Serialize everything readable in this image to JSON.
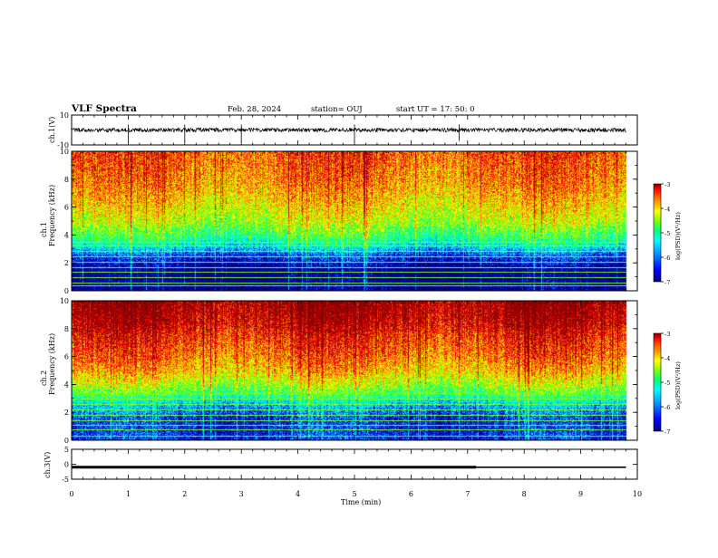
{
  "header": {
    "title": "VLF Spectra",
    "date": "Feb. 28, 2024",
    "station": "station= OUJ",
    "start": "start  UT =   17: 50: 0"
  },
  "colors": {
    "spectrum_scale": [
      "#00007f",
      "#0000ff",
      "#00a0ff",
      "#00ffff",
      "#00ff80",
      "#80ff00",
      "#ffff00",
      "#ff8000",
      "#ff0000",
      "#800000"
    ]
  },
  "chart_data": [
    {
      "id": "ch1-waveform",
      "type": "line",
      "ylabel": "ch.1(V)",
      "ylim": [
        -10,
        10
      ],
      "yticks": [
        "10",
        "-10"
      ],
      "xlim": [
        0,
        10
      ],
      "series": [
        {
          "x": [
            0,
            9.8
          ],
          "y": [
            0,
            0
          ]
        }
      ],
      "spikes_min": [
        1.0,
        2.0,
        3.0,
        5.0,
        6.85
      ]
    },
    {
      "id": "ch1-spectrogram",
      "type": "heatmap",
      "ylabel": "ch.1\nFrequency (kHz)",
      "ylim": [
        0,
        10
      ],
      "yticks": [
        "0",
        "2",
        "4",
        "6",
        "8",
        "10"
      ],
      "xlim": [
        0,
        10
      ],
      "data_end_min": 9.8,
      "profile_khz": [
        [
          0,
          1.0
        ],
        [
          1.5,
          1.0
        ],
        [
          2.5,
          0.7
        ],
        [
          3.3,
          0.25
        ],
        [
          4.0,
          0.0
        ],
        [
          5.0,
          -0.25
        ],
        [
          6.5,
          -0.45
        ],
        [
          8.0,
          -0.6
        ],
        [
          10.0,
          -0.7
        ]
      ],
      "colorbar": {
        "label": "log(PSD)(V²/Hz)",
        "range": [
          -7,
          -3
        ],
        "ticks": [
          "-3",
          "-4",
          "-5",
          "-6",
          "-7"
        ]
      },
      "tone_lines_khz": [
        0.4,
        0.6,
        1.0,
        1.35,
        1.7,
        2.1,
        2.5,
        2.85,
        3.25,
        3.5
      ]
    },
    {
      "id": "ch2-spectrogram",
      "type": "heatmap",
      "ylabel": "ch.2\nFrequency (kHz)",
      "ylim": [
        0,
        10
      ],
      "yticks": [
        "0",
        "2",
        "4",
        "6",
        "8",
        "10"
      ],
      "xlim": [
        0,
        10
      ],
      "data_end_min": 9.8,
      "profile_khz": [
        [
          0,
          1.0
        ],
        [
          1.5,
          1.0
        ],
        [
          2.5,
          0.7
        ],
        [
          3.3,
          0.3
        ],
        [
          4.0,
          0.05
        ],
        [
          5.0,
          -0.2
        ],
        [
          6.0,
          -0.35
        ],
        [
          7.5,
          -0.5
        ],
        [
          8.5,
          -0.65
        ],
        [
          10.0,
          -0.75
        ]
      ],
      "colorbar": {
        "label": "log(PSD)(V²/Hz)",
        "range": [
          -7,
          -3
        ],
        "ticks": [
          "-3",
          "-4",
          "-5",
          "-6",
          "-7"
        ]
      },
      "tone_lines_khz": [
        0.35,
        0.75,
        1.1,
        1.45,
        1.8,
        2.2,
        2.6,
        3.0,
        3.35
      ]
    },
    {
      "id": "ch3-waveform",
      "type": "line",
      "ylabel": "ch.3(V)",
      "ylim": [
        -5,
        5
      ],
      "yticks": [
        "5",
        "0",
        "-5"
      ],
      "xlim": [
        0,
        10
      ],
      "series": [
        {
          "x": [
            0,
            7.15,
            9.8
          ],
          "y": [
            -1,
            -1,
            -1
          ]
        }
      ],
      "thick_until_min": 7.15
    }
  ],
  "xaxis": {
    "label": "Time  (min)",
    "ticks": [
      "0",
      "1",
      "2",
      "3",
      "4",
      "5",
      "6",
      "7",
      "8",
      "9",
      "10"
    ]
  }
}
